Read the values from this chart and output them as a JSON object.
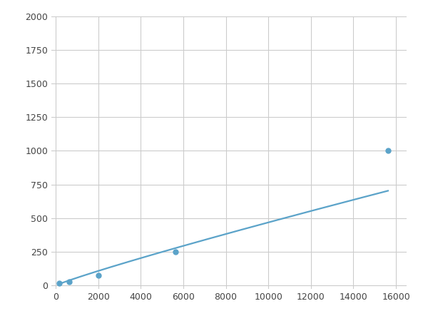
{
  "x": [
    156.25,
    625,
    2000,
    5625,
    15625
  ],
  "y": [
    15,
    30,
    75,
    250,
    1000
  ],
  "line_color": "#5ba3c9",
  "marker_color": "#5ba3c9",
  "marker_size": 5,
  "line_width": 1.6,
  "xlim": [
    -200,
    16500
  ],
  "ylim": [
    -25,
    2000
  ],
  "xticks": [
    0,
    2000,
    4000,
    6000,
    8000,
    10000,
    12000,
    14000,
    16000
  ],
  "yticks": [
    0,
    250,
    500,
    750,
    1000,
    1250,
    1500,
    1750,
    2000
  ],
  "grid_color": "#cccccc",
  "background_color": "#ffffff",
  "fig_background": "#ffffff"
}
